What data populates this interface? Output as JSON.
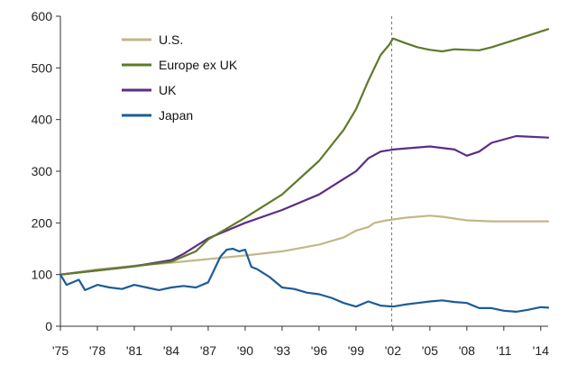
{
  "chart_data": {
    "type": "line",
    "title": "",
    "xlabel": "",
    "ylabel": "",
    "xlim": [
      1975,
      2014.6
    ],
    "ylim": [
      0,
      600
    ],
    "x_ticks": [
      1975,
      1978,
      1981,
      1984,
      1987,
      1990,
      1993,
      1996,
      1999,
      2002,
      2005,
      2008,
      2011,
      2014
    ],
    "x_tick_labels": [
      "'75",
      "'78",
      "'81",
      "'84",
      "'87",
      "'90",
      "'93",
      "'96",
      "'99",
      "'02",
      "'05",
      "'08",
      "'11",
      "'14"
    ],
    "y_ticks": [
      0,
      100,
      200,
      300,
      400,
      500,
      600
    ],
    "y_tick_labels": [
      "0",
      "100",
      "200",
      "300",
      "400",
      "500",
      "600"
    ],
    "grid": false,
    "legend_position": "top-left",
    "reference_line": {
      "x": 2001.9,
      "style": "dashed"
    },
    "series": [
      {
        "name": "U.S.",
        "color": "#c2b78a",
        "x": [
          1975,
          1978,
          1981,
          1984,
          1987,
          1990,
          1993,
          1996,
          1998,
          1999,
          2000,
          2000.5,
          2001.5,
          2003,
          2005,
          2006,
          2008,
          2010,
          2012,
          2014.6
        ],
        "y": [
          100,
          110,
          117,
          123,
          130,
          137,
          145,
          158,
          172,
          185,
          192,
          200,
          205,
          210,
          214,
          212,
          205,
          203,
          203,
          203
        ]
      },
      {
        "name": "Europe ex UK",
        "color": "#5e7a2b",
        "x": [
          1975,
          1978,
          1981,
          1984,
          1986,
          1987,
          1990,
          1993,
          1996,
          1998,
          1999,
          2000,
          2001,
          2001.7,
          2002,
          2003,
          2004,
          2005,
          2006,
          2007,
          2008,
          2009,
          2010,
          2012,
          2014.6
        ],
        "y": [
          100,
          108,
          116,
          125,
          145,
          168,
          210,
          255,
          320,
          380,
          420,
          475,
          525,
          545,
          557,
          548,
          540,
          535,
          532,
          536,
          535,
          534,
          540,
          555,
          575
        ]
      },
      {
        "name": "UK",
        "color": "#5c2d85",
        "x": [
          1975,
          1978,
          1981,
          1984,
          1985,
          1987,
          1990,
          1993,
          1996,
          1998,
          1999,
          2000,
          2001,
          2002,
          2005,
          2007,
          2008,
          2009,
          2010,
          2012,
          2014.6
        ],
        "y": [
          100,
          108,
          116,
          128,
          140,
          170,
          200,
          225,
          255,
          285,
          300,
          325,
          338,
          342,
          348,
          342,
          330,
          338,
          355,
          368,
          365
        ]
      },
      {
        "name": "Japan",
        "color": "#1d5c96",
        "x": [
          1975,
          1975.5,
          1976.5,
          1977,
          1978,
          1979,
          1980,
          1981,
          1982,
          1983,
          1984,
          1985,
          1986,
          1987,
          1987.5,
          1988,
          1988.5,
          1989,
          1989.5,
          1990,
          1990.5,
          1991,
          1992,
          1993,
          1994,
          1995,
          1996,
          1997,
          1998,
          1999,
          2000,
          2001,
          2002,
          2003,
          2004,
          2005,
          2006,
          2007,
          2008,
          2009,
          2010,
          2011,
          2012,
          2013,
          2014,
          2014.6
        ],
        "y": [
          100,
          80,
          90,
          70,
          80,
          75,
          72,
          80,
          75,
          70,
          75,
          78,
          75,
          85,
          110,
          135,
          148,
          150,
          145,
          148,
          115,
          110,
          95,
          75,
          72,
          65,
          62,
          55,
          45,
          38,
          48,
          40,
          38,
          42,
          45,
          48,
          50,
          47,
          45,
          35,
          35,
          30,
          28,
          32,
          37,
          36
        ]
      }
    ]
  }
}
